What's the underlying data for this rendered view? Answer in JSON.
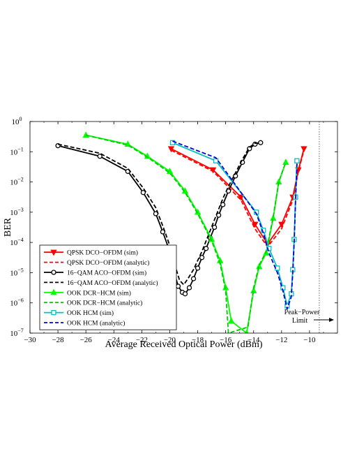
{
  "chart_data": {
    "type": "line",
    "xlabel": "Average Received Optical Power (dBm)",
    "ylabel": "BER",
    "xlim": [
      -30,
      -8
    ],
    "ylim_exponent": [
      -7,
      0
    ],
    "yscale": "log",
    "grid": false,
    "legend_position": "bottom-left",
    "x_ticks": [
      "−30",
      "−28",
      "−26",
      "−24",
      "−22",
      "−20",
      "−18",
      "−16",
      "−14",
      "−12",
      "−10"
    ],
    "x_tick_values": [
      -30,
      -28,
      -26,
      -24,
      -22,
      -20,
      -18,
      -16,
      -14,
      -12,
      -10
    ],
    "y_ticks": [
      {
        "base": "10",
        "exp": "0",
        "value": 0
      },
      {
        "base": "10",
        "exp": "−1",
        "value": -1
      },
      {
        "base": "10",
        "exp": "−2",
        "value": -2
      },
      {
        "base": "10",
        "exp": "−3",
        "value": -3
      },
      {
        "base": "10",
        "exp": "−4",
        "value": -4
      },
      {
        "base": "10",
        "exp": "−5",
        "value": -5
      },
      {
        "base": "10",
        "exp": "−6",
        "value": -6
      },
      {
        "base": "10",
        "exp": "−7",
        "value": -7
      }
    ],
    "series": [
      {
        "name": "QPSK DCO−OFDM (sim)",
        "color": "#ff0000",
        "dash": "solid",
        "marker": "triangle-down",
        "x": [
          -19.9,
          -16.9,
          -14.9,
          -13.9,
          -13.0,
          -12.0,
          -11.2,
          -10.8,
          -10.4
        ],
        "y": [
          -0.9,
          -1.6,
          -2.5,
          -3.4,
          -4.05,
          -3.4,
          -2.5,
          -1.6,
          -0.9
        ]
      },
      {
        "name": "QPSK DCO−OFDM (analytic)",
        "color": "#ff0000",
        "dash": "dashed",
        "marker": "none",
        "x": [
          -19.9,
          -16.9,
          -14.9,
          -13.9,
          -13.0,
          -12.0,
          -11.2,
          -10.8,
          -10.4
        ],
        "y": [
          -0.95,
          -1.65,
          -2.6,
          -3.55,
          -4.15,
          -3.55,
          -2.6,
          -1.65,
          -0.95
        ]
      },
      {
        "name": "16−QAM ACO−OFDM (sim)",
        "color": "#000000",
        "dash": "solid",
        "marker": "circle",
        "x": [
          -28.0,
          -25.0,
          -23.0,
          -21.9,
          -21.0,
          -20.5,
          -20.0,
          -19.7,
          -19.4,
          -19.1,
          -18.9,
          -18.6,
          -18.3,
          -18.0,
          -17.7,
          -17.4,
          -17.1,
          -16.8,
          -16.5,
          -16.2,
          -15.8,
          -15.3,
          -14.8,
          -14.3,
          -13.9,
          -13.5
        ],
        "y": [
          -0.8,
          -1.15,
          -1.65,
          -2.35,
          -3.05,
          -3.65,
          -4.3,
          -4.95,
          -5.45,
          -5.65,
          -5.7,
          -5.5,
          -5.2,
          -4.85,
          -4.5,
          -4.2,
          -3.85,
          -3.5,
          -3.1,
          -2.75,
          -2.3,
          -1.8,
          -1.35,
          -0.9,
          -0.75,
          -0.7
        ]
      },
      {
        "name": "16−QAM ACO−OFDM (analytic)",
        "color": "#000000",
        "dash": "dashed",
        "marker": "none",
        "x": [
          -28.0,
          -25.0,
          -23.0,
          -21.9,
          -21.0,
          -20.5,
          -20.0,
          -19.6,
          -19.3,
          -19.0,
          -18.7,
          -18.3,
          -18.0,
          -17.7,
          -17.4,
          -17.1,
          -16.8,
          -16.5,
          -16.2,
          -15.8,
          -15.3,
          -14.8,
          -14.3,
          -13.9,
          -13.5
        ],
        "y": [
          -0.75,
          -1.05,
          -1.55,
          -2.2,
          -2.85,
          -3.45,
          -4.1,
          -4.8,
          -5.25,
          -5.4,
          -5.2,
          -4.9,
          -4.6,
          -4.3,
          -3.95,
          -3.6,
          -3.25,
          -2.9,
          -2.55,
          -2.15,
          -1.7,
          -1.25,
          -0.85,
          -0.72,
          -0.7
        ]
      },
      {
        "name": "OOK DCR−HCM (sim)",
        "color": "#00ff00",
        "dash": "solid",
        "marker": "triangle-up",
        "x": [
          -26.0,
          -23.0,
          -21.6,
          -20.0,
          -18.9,
          -18.0,
          -17.0,
          -16.4,
          -16.0,
          -15.6,
          -14.5,
          -14.0,
          -13.6,
          -13.1,
          -12.6,
          -12.2,
          -11.7
        ],
        "y": [
          -0.45,
          -0.75,
          -1.15,
          -1.65,
          -2.3,
          -3.0,
          -3.9,
          -4.6,
          -5.5,
          -6.6,
          -7.0,
          -5.6,
          -4.8,
          -4.35,
          -3.2,
          -2.0,
          -1.35
        ]
      },
      {
        "name": "OOK DCR−HCM (analytic)",
        "color": "#00cc00",
        "dash": "dashed",
        "marker": "none",
        "x": [
          -26.0,
          -23.0,
          -21.6,
          -20.0,
          -18.9,
          -18.0,
          -17.0,
          -16.4,
          -16.0,
          -15.8,
          -14.4,
          -14.0,
          -13.6,
          -13.1,
          -12.6,
          -12.2,
          -11.7
        ],
        "y": [
          -0.45,
          -0.78,
          -1.18,
          -1.7,
          -2.35,
          -3.05,
          -3.95,
          -4.7,
          -5.6,
          -7.0,
          -6.8,
          -5.5,
          -4.75,
          -4.3,
          -3.15,
          -2.0,
          -1.35
        ]
      },
      {
        "name": "OOK HCM (sim)",
        "color": "#00c0c0",
        "dash": "solid",
        "marker": "square",
        "x": [
          -19.8,
          -16.7,
          -13.8,
          -13.3,
          -12.9,
          -12.3,
          -11.9,
          -11.6,
          -11.3,
          -11.2,
          -11.1,
          -11.0,
          -10.9
        ],
        "y": [
          -0.7,
          -1.3,
          -3.0,
          -3.6,
          -4.2,
          -4.85,
          -5.5,
          -6.1,
          -5.7,
          -4.9,
          -3.9,
          -2.5,
          -1.3
        ]
      },
      {
        "name": "OOK HCM (analytic)",
        "color": "#0000dd",
        "dash": "dashed",
        "marker": "none",
        "x": [
          -19.8,
          -16.7,
          -13.8,
          -13.3,
          -12.9,
          -12.3,
          -11.9,
          -11.6,
          -11.3,
          -11.2,
          -11.1,
          -11.0,
          -10.9
        ],
        "y": [
          -0.65,
          -1.2,
          -3.05,
          -3.7,
          -4.35,
          -5.0,
          -5.6,
          -6.2,
          -5.8,
          -5.0,
          -4.0,
          -2.6,
          -1.4
        ]
      }
    ],
    "annotation": {
      "line1": "Peak−Power",
      "line2": "Limit",
      "limit_x": -9.3
    }
  }
}
